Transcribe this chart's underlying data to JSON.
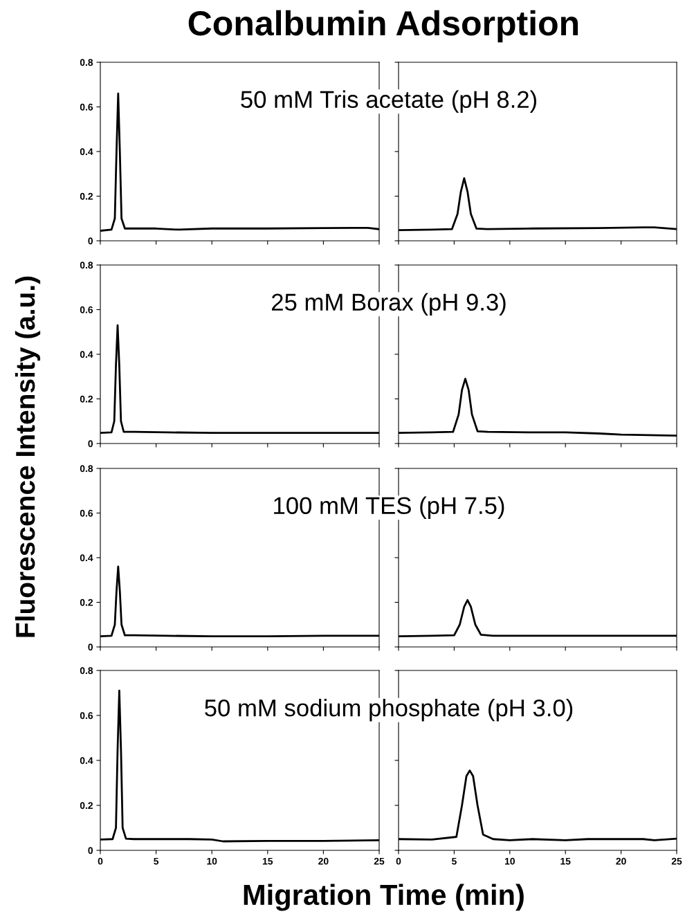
{
  "chart_data": [
    {
      "type": "line",
      "title": "Conalbumin Adsorption",
      "ylabel": "Fluorescence Intensity (a.u.)",
      "annotations": [
        "50 mM Tris acetate (pH 8.2)"
      ],
      "xlim": [
        0,
        25
      ],
      "ylim": [
        0,
        0.8
      ],
      "xticks": [
        0,
        5,
        10,
        15,
        20,
        25
      ],
      "yticks": [
        0,
        0.2,
        0.4,
        0.6,
        0.8
      ],
      "tick_labels": "y",
      "series": [
        {
          "color": "#000000",
          "x": [
            0,
            1.0,
            1.3,
            1.45,
            1.6,
            1.75,
            1.9,
            2.2,
            3,
            5,
            7,
            10,
            15,
            20,
            24,
            25
          ],
          "values": [
            0.045,
            0.05,
            0.1,
            0.4,
            0.66,
            0.4,
            0.1,
            0.055,
            0.055,
            0.055,
            0.05,
            0.055,
            0.055,
            0.057,
            0.058,
            0.052
          ]
        }
      ]
    },
    {
      "type": "line",
      "xlim": [
        0,
        25
      ],
      "ylim": [
        0,
        0.8
      ],
      "xticks": [
        0,
        5,
        10,
        15,
        20,
        25
      ],
      "yticks": [
        0,
        0.2,
        0.4,
        0.6,
        0.8
      ],
      "tick_labels": false,
      "series": [
        {
          "color": "#000000",
          "x": [
            0,
            3,
            4.8,
            5.3,
            5.6,
            5.9,
            6.2,
            6.5,
            7.0,
            8,
            12,
            18,
            22,
            23,
            25
          ],
          "values": [
            0.048,
            0.05,
            0.052,
            0.12,
            0.22,
            0.28,
            0.22,
            0.12,
            0.055,
            0.052,
            0.055,
            0.057,
            0.06,
            0.06,
            0.052
          ]
        }
      ]
    },
    {
      "type": "line",
      "annotations": [
        "25 mM Borax (pH 9.3)"
      ],
      "xlim": [
        0,
        25
      ],
      "ylim": [
        0,
        0.8
      ],
      "xticks": [
        0,
        5,
        10,
        15,
        20,
        25
      ],
      "yticks": [
        0,
        0.2,
        0.4,
        0.6,
        0.8
      ],
      "tick_labels": "y",
      "series": [
        {
          "color": "#000000",
          "x": [
            0,
            1.0,
            1.25,
            1.4,
            1.55,
            1.7,
            1.85,
            2.1,
            3,
            6,
            10,
            15,
            20,
            25
          ],
          "values": [
            0.048,
            0.05,
            0.1,
            0.35,
            0.53,
            0.35,
            0.1,
            0.052,
            0.052,
            0.05,
            0.048,
            0.048,
            0.048,
            0.048
          ]
        }
      ]
    },
    {
      "type": "line",
      "xlim": [
        0,
        25
      ],
      "ylim": [
        0,
        0.8
      ],
      "xticks": [
        0,
        5,
        10,
        15,
        20,
        25
      ],
      "yticks": [
        0,
        0.2,
        0.4,
        0.6,
        0.8
      ],
      "tick_labels": false,
      "series": [
        {
          "color": "#000000",
          "x": [
            0,
            3,
            4.9,
            5.4,
            5.7,
            6.0,
            6.3,
            6.6,
            7.1,
            8,
            12,
            15,
            18,
            20,
            25
          ],
          "values": [
            0.048,
            0.05,
            0.052,
            0.13,
            0.24,
            0.29,
            0.24,
            0.13,
            0.055,
            0.052,
            0.05,
            0.05,
            0.045,
            0.04,
            0.035
          ]
        }
      ]
    },
    {
      "type": "line",
      "annotations": [
        "100 mM TES (pH 7.5)"
      ],
      "xlim": [
        0,
        25
      ],
      "ylim": [
        0,
        0.8
      ],
      "xticks": [
        0,
        5,
        10,
        15,
        20,
        25
      ],
      "yticks": [
        0,
        0.2,
        0.4,
        0.6,
        0.8
      ],
      "tick_labels": "y",
      "series": [
        {
          "color": "#000000",
          "x": [
            0,
            1.0,
            1.3,
            1.45,
            1.6,
            1.75,
            1.9,
            2.2,
            3,
            6,
            10,
            15,
            20,
            25
          ],
          "values": [
            0.048,
            0.05,
            0.1,
            0.25,
            0.36,
            0.25,
            0.1,
            0.052,
            0.052,
            0.05,
            0.048,
            0.048,
            0.05,
            0.05
          ]
        }
      ]
    },
    {
      "type": "line",
      "xlim": [
        0,
        25
      ],
      "ylim": [
        0,
        0.8
      ],
      "xticks": [
        0,
        5,
        10,
        15,
        20,
        25
      ],
      "yticks": [
        0,
        0.2,
        0.4,
        0.6,
        0.8
      ],
      "tick_labels": false,
      "series": [
        {
          "color": "#000000",
          "x": [
            0,
            3,
            5.0,
            5.5,
            5.9,
            6.2,
            6.5,
            6.9,
            7.4,
            8.5,
            12,
            18,
            25
          ],
          "values": [
            0.048,
            0.05,
            0.052,
            0.1,
            0.18,
            0.21,
            0.18,
            0.1,
            0.055,
            0.05,
            0.05,
            0.05,
            0.05
          ]
        }
      ]
    },
    {
      "type": "line",
      "annotations": [
        "50 mM sodium phosphate (pH 3.0)"
      ],
      "xlim": [
        0,
        25
      ],
      "ylim": [
        0,
        0.8
      ],
      "xticks": [
        0,
        5,
        10,
        15,
        20,
        25
      ],
      "yticks": [
        0,
        0.2,
        0.4,
        0.6,
        0.8
      ],
      "series": [
        {
          "color": "#000000",
          "x": [
            0,
            1.1,
            1.4,
            1.55,
            1.7,
            1.85,
            2.0,
            2.3,
            3,
            5,
            8,
            10,
            11,
            15,
            20,
            25
          ],
          "values": [
            0.048,
            0.05,
            0.1,
            0.45,
            0.71,
            0.45,
            0.1,
            0.052,
            0.05,
            0.05,
            0.05,
            0.048,
            0.04,
            0.042,
            0.042,
            0.045
          ]
        }
      ]
    },
    {
      "type": "line",
      "xlabel": "Migration Time (min)",
      "xlim": [
        0,
        25
      ],
      "ylim": [
        0,
        0.8
      ],
      "xticks": [
        0,
        5,
        10,
        15,
        20,
        25
      ],
      "yticks": [
        0,
        0.2,
        0.4,
        0.6,
        0.8
      ],
      "tick_labels": "x",
      "series": [
        {
          "color": "#000000",
          "x": [
            0,
            3,
            5.2,
            5.7,
            6.1,
            6.4,
            6.7,
            7.1,
            7.6,
            8.5,
            10,
            12,
            15,
            17,
            22,
            23,
            25
          ],
          "values": [
            0.05,
            0.048,
            0.06,
            0.2,
            0.33,
            0.355,
            0.33,
            0.2,
            0.07,
            0.05,
            0.045,
            0.05,
            0.045,
            0.05,
            0.05,
            0.045,
            0.052
          ]
        }
      ]
    }
  ]
}
